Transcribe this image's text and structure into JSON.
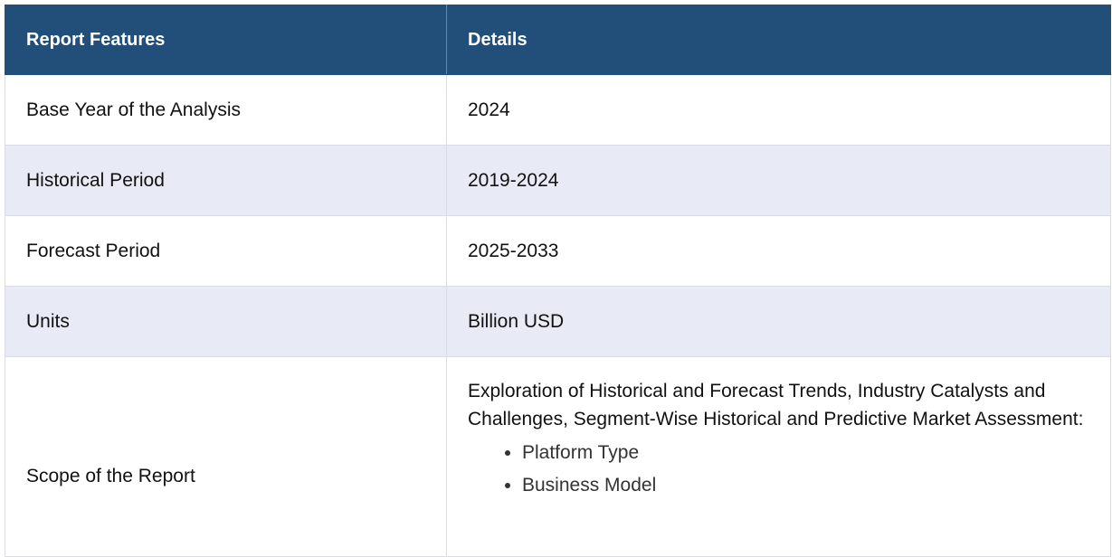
{
  "table": {
    "headers": [
      "Report Features",
      "Details"
    ],
    "rows": [
      {
        "feature": "Base Year of the Analysis",
        "detail": "2024"
      },
      {
        "feature": "Historical Period",
        "detail": "2019-2024"
      },
      {
        "feature": "Forecast Period",
        "detail": "2025-2033"
      },
      {
        "feature": "Units",
        "detail": "Billion USD"
      }
    ],
    "scope": {
      "feature": "Scope of the Report",
      "intro": "Exploration of Historical and Forecast Trends, Industry Catalysts and Challenges, Segment-Wise Historical and Predictive Market Assessment:",
      "items": [
        "Platform Type",
        "Business Model"
      ]
    }
  },
  "colors": {
    "header_bg": "#214f79",
    "alt_row_bg": "#e8eaf6",
    "header_text": "#ffffff"
  }
}
